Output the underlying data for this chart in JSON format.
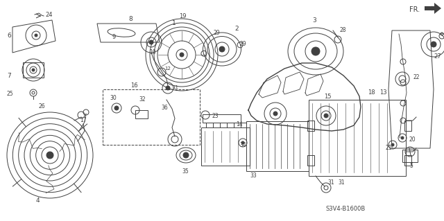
{
  "title": "",
  "bg_color": "#ffffff",
  "dc": "#404040",
  "code": "S3V4-B1600B",
  "fr_label": "FR.",
  "figsize": [
    6.4,
    3.19
  ],
  "dpi": 100,
  "lw": 0.7
}
